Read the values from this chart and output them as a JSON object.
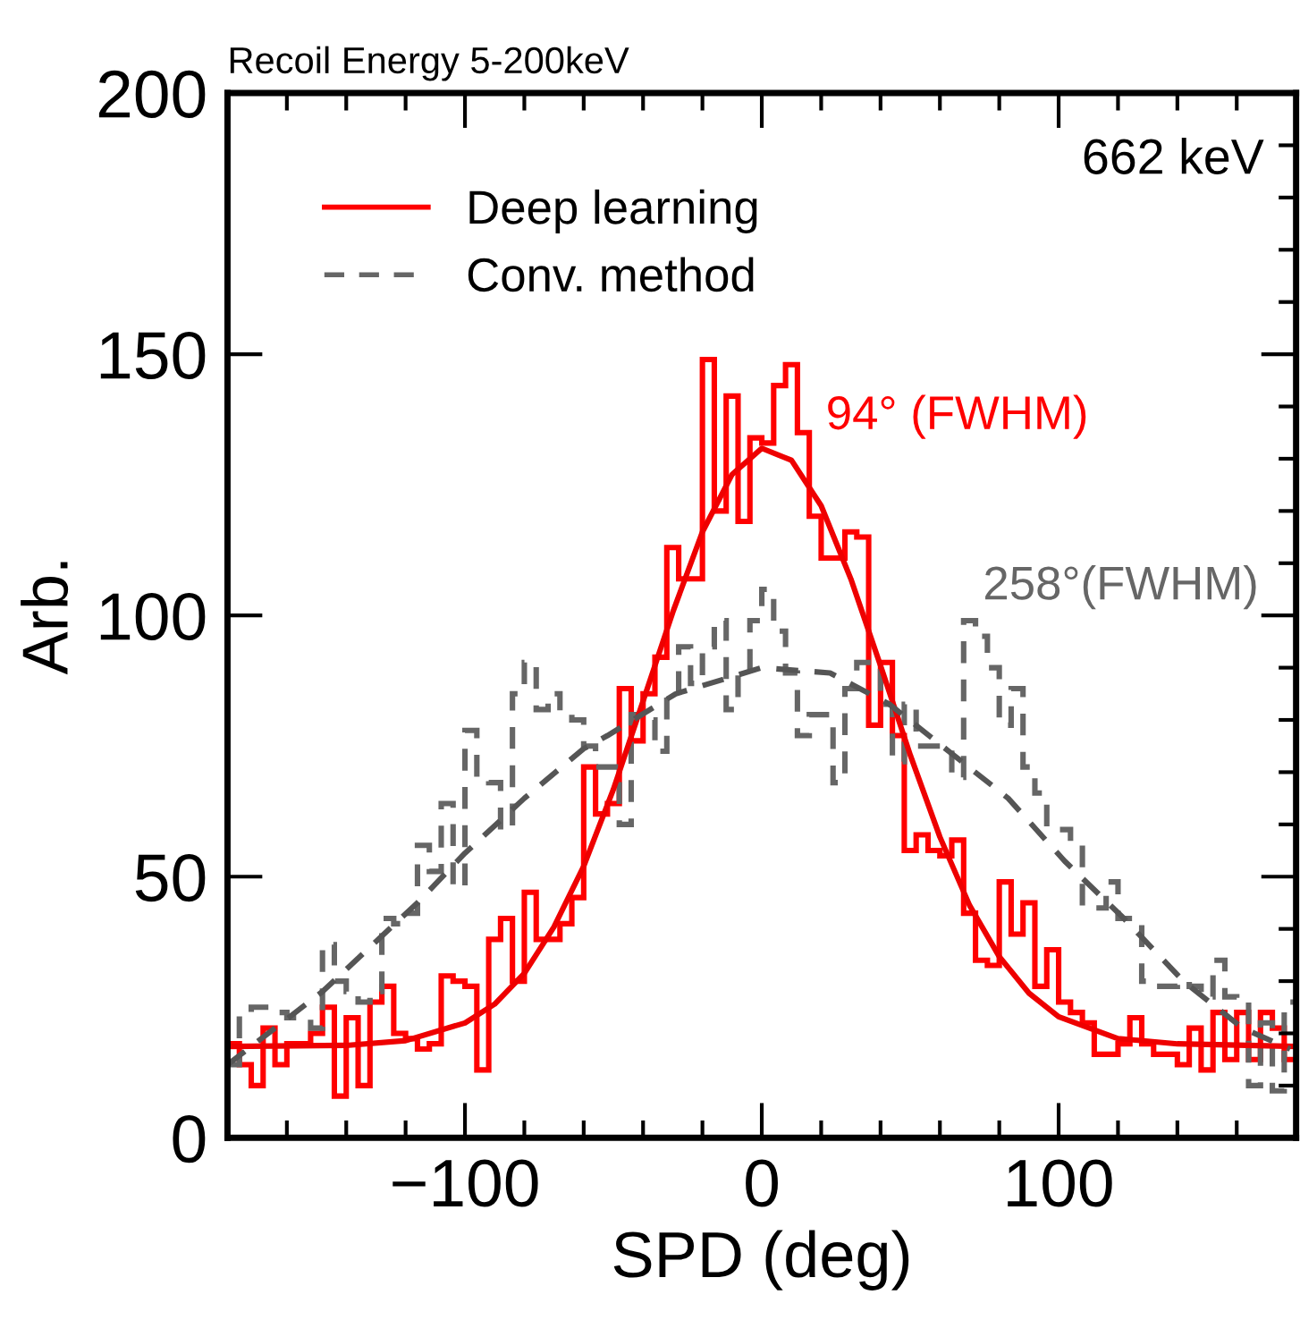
{
  "chart_data": {
    "type": "histogram",
    "title": "Recoil Energy 5-200keV",
    "xlabel": "SPD (deg)",
    "ylabel": "Arb.",
    "annotations": [
      "662 keV",
      "94° (FWHM)",
      "258°(FWHM)"
    ],
    "bins": [
      -180,
      -176,
      -172,
      -168,
      -164,
      -160,
      -156,
      -152,
      -148,
      -144,
      -140,
      -136,
      -132,
      -128,
      -124,
      -120,
      -116,
      -112,
      -108,
      -104,
      -100,
      -96,
      -92,
      -88,
      -84,
      -80,
      -76,
      -72,
      -68,
      -64,
      -60,
      -56,
      -52,
      -48,
      -44,
      -40,
      -36,
      -32,
      -28,
      -24,
      -20,
      -16,
      -12,
      -8,
      -4,
      0,
      4,
      8,
      12,
      16,
      20,
      24,
      28,
      32,
      36,
      40,
      44,
      48,
      52,
      56,
      60,
      64,
      68,
      72,
      76,
      80,
      84,
      88,
      92,
      96,
      100,
      104,
      108,
      112,
      116,
      120,
      124,
      128,
      132,
      136,
      140,
      144,
      148,
      152,
      156,
      160,
      164,
      168,
      172,
      176,
      180
    ],
    "series": [
      {
        "name": "Deep learning",
        "color": "#ff0000",
        "line_style": "solid",
        "values": [
          18,
          14,
          10,
          21,
          14,
          18,
          18,
          20,
          25,
          8,
          23,
          10,
          26,
          29,
          20,
          19,
          17,
          18,
          31,
          30,
          29,
          13,
          38,
          42,
          30,
          47,
          38,
          38,
          41,
          46,
          71,
          62,
          64,
          86,
          76,
          85,
          92,
          113,
          107,
          107,
          149,
          120,
          142,
          118,
          134,
          133,
          144,
          148,
          135,
          119,
          111,
          111,
          116,
          115,
          79,
          91,
          77,
          55,
          58,
          55,
          54,
          57,
          43,
          34,
          33,
          49,
          39,
          45,
          29,
          36,
          26,
          24,
          22,
          16,
          16,
          18,
          23,
          18,
          16,
          16,
          14,
          21,
          13,
          24,
          15,
          24,
          15,
          24,
          21,
          15
        ]
      },
      {
        "name": "Conv. method",
        "color": "#666666",
        "line_style": "dashed",
        "values": [
          14,
          24,
          25,
          25,
          24,
          23,
          23,
          21,
          37,
          30,
          28,
          26,
          28,
          42,
          41,
          43,
          56,
          51,
          64,
          48,
          78,
          69,
          68,
          59,
          85,
          91,
          82,
          85,
          81,
          80,
          75,
          71,
          71,
          60,
          81,
          80,
          74,
          85,
          94,
          87,
          94,
          99,
          82,
          89,
          99,
          105,
          97,
          89,
          77,
          81,
          81,
          68,
          86,
          91,
          91,
          83,
          72,
          83,
          75,
          75,
          75,
          69,
          99,
          96,
          90,
          79,
          86,
          71,
          66,
          59,
          59,
          56,
          44,
          44,
          49,
          42,
          42,
          30,
          29,
          29,
          30,
          29,
          27,
          34,
          27,
          26,
          10,
          22,
          9,
          26
        ]
      },
      {
        "type": "line",
        "color": "#ee0000",
        "line_style": "solid",
        "x": [
          -180,
          -140,
          -120,
          -100,
          -90,
          -80,
          -70,
          -60,
          -50,
          -40,
          -30,
          -20,
          -10,
          0,
          10,
          20,
          30,
          40,
          50,
          60,
          70,
          80,
          90,
          100,
          120,
          140,
          180
        ],
        "values": [
          17.5,
          17.7,
          18.6,
          22,
          25.6,
          31.5,
          40.4,
          52,
          66.7,
          83.6,
          100.6,
          116,
          127,
          132,
          129.7,
          121,
          107,
          90.4,
          73.3,
          57.6,
          44.5,
          34.7,
          27.7,
          23.2,
          19,
          18,
          17.5
        ]
      },
      {
        "type": "line",
        "color": "#555555",
        "line_style": "dashed",
        "x": [
          -180,
          -148,
          -116,
          -100,
          -80,
          -60,
          -52,
          -29,
          0,
          23,
          43,
          63,
          83,
          102,
          122,
          142,
          162,
          178
        ],
        "values": [
          14,
          28,
          45,
          54.5,
          65,
          74.5,
          77,
          85,
          90,
          89,
          83,
          74,
          65,
          53,
          42,
          30,
          21,
          17
        ]
      }
    ],
    "xlim": [
      -180,
      180
    ],
    "ylim": [
      0,
      200
    ],
    "xticks": [
      {
        "value": -100,
        "label": "−100"
      },
      0,
      100
    ],
    "yticks": [
      0,
      50,
      100,
      150,
      200
    ],
    "grid": false,
    "legend": "top left"
  }
}
